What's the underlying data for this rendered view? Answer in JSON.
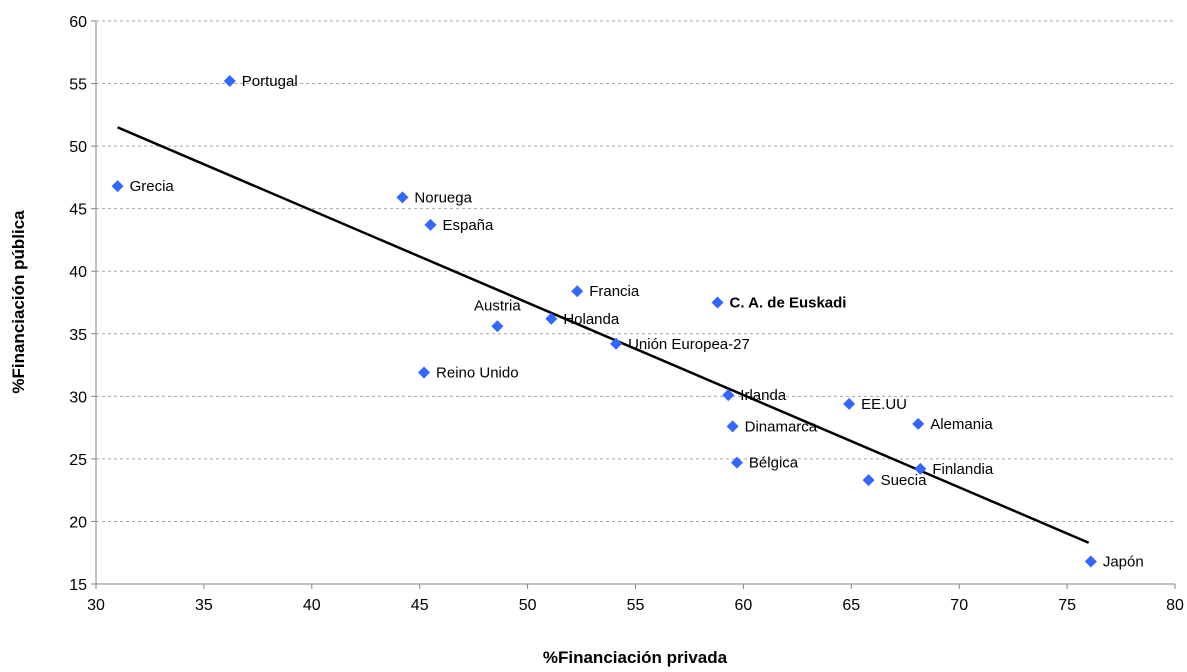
{
  "chart_data": {
    "type": "scatter",
    "xlabel": "%Financiación privada",
    "ylabel": "%Financiación pública",
    "xlim": [
      30,
      80
    ],
    "ylim": [
      15,
      60
    ],
    "xticks": [
      30,
      35,
      40,
      45,
      50,
      55,
      60,
      65,
      70,
      75,
      80
    ],
    "yticks": [
      15,
      20,
      25,
      30,
      35,
      40,
      45,
      50,
      55,
      60
    ],
    "grid": "horizontal dashed",
    "marker": "diamond",
    "marker_color": "#3366ff",
    "trendline": {
      "x": [
        31,
        76
      ],
      "y": [
        51.5,
        18.3
      ],
      "color": "#000000"
    },
    "points": [
      {
        "label": "Portugal",
        "x": 36.2,
        "y": 55.2
      },
      {
        "label": "Grecia",
        "x": 31.0,
        "y": 46.8
      },
      {
        "label": "Noruega",
        "x": 44.2,
        "y": 45.9
      },
      {
        "label": "España",
        "x": 45.5,
        "y": 43.7
      },
      {
        "label": "Francia",
        "x": 52.3,
        "y": 38.4
      },
      {
        "label": "C. A. de Euskadi",
        "x": 58.8,
        "y": 37.5,
        "bold": true
      },
      {
        "label": "Austria",
        "x": 48.6,
        "y": 35.6
      },
      {
        "label": "Holanda",
        "x": 51.1,
        "y": 36.2
      },
      {
        "label": "Unión Europea-27",
        "x": 54.1,
        "y": 34.2
      },
      {
        "label": "Reino Unido",
        "x": 45.2,
        "y": 31.9
      },
      {
        "label": "Irlanda",
        "x": 59.3,
        "y": 30.1
      },
      {
        "label": "EE.UU",
        "x": 64.9,
        "y": 29.4
      },
      {
        "label": "Alemania",
        "x": 68.1,
        "y": 27.8
      },
      {
        "label": "Dinamarca",
        "x": 59.5,
        "y": 27.6
      },
      {
        "label": "Bélgica",
        "x": 59.7,
        "y": 24.7
      },
      {
        "label": "Finlandia",
        "x": 68.2,
        "y": 24.2
      },
      {
        "label": "Suecia",
        "x": 65.8,
        "y": 23.3
      },
      {
        "label": "Japón",
        "x": 76.1,
        "y": 16.8
      }
    ]
  }
}
